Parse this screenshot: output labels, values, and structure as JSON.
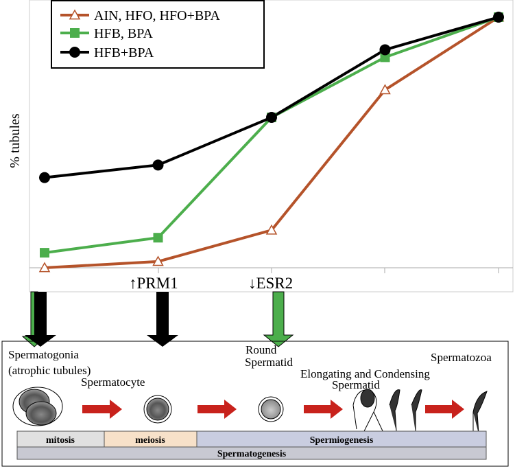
{
  "chart_data": {
    "type": "line",
    "y_label": "% tubules",
    "categories": [
      null,
      null,
      null,
      null,
      null
    ],
    "ylim": [
      0,
      100
    ],
    "series": [
      {
        "name": "AIN, HFO, HFO+BPA",
        "color": "#b5532a",
        "marker": "open-triangle",
        "values": [
          0,
          2.5,
          15,
          71,
          100
        ]
      },
      {
        "name": "HFB, BPA",
        "color": "#4cae4c",
        "marker": "square",
        "values": [
          6,
          12,
          60,
          84,
          100
        ]
      },
      {
        "name": "HFB+BPA",
        "color": "#000000",
        "marker": "circle",
        "values": [
          36,
          41,
          60,
          87,
          100
        ]
      }
    ],
    "legend": "top-left",
    "annotations": [
      "↑PRM1",
      "↓ESR2"
    ]
  },
  "diagram": {
    "stages": {
      "spermatogonia": [
        "Spermatogonia",
        "(atrophic tubules)"
      ],
      "spermatocyte": "Spermatocyte",
      "round_spermatid": [
        "Round",
        "Spermatid"
      ],
      "elongating": [
        "Elongating and Condensing",
        "Spermatid"
      ],
      "spermatozoa": "Spermatozoa"
    },
    "phases": [
      "mitosis",
      "meiosis",
      "Spermiogenesis"
    ],
    "process": "Spermatogenesis"
  }
}
